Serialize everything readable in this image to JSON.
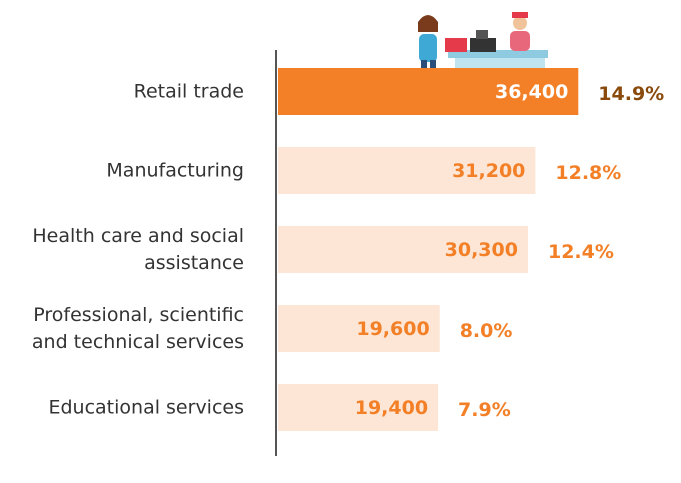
{
  "chart_data": {
    "type": "bar",
    "orientation": "horizontal",
    "categories": [
      "Retail trade",
      "Manufacturing",
      "Health care and social\nassistance",
      "Professional, scientific\nand technical services",
      "Educational services"
    ],
    "values": [
      36400,
      31200,
      30300,
      19600,
      19400
    ],
    "value_labels": [
      "36,400",
      "31,200",
      "30,300",
      "19,600",
      "19,400"
    ],
    "colors": [
      "#f37f26",
      "#fde6d5",
      "#fde6d5",
      "#fde6d5",
      "#fde6d5"
    ],
    "value_label_colors": [
      "#ffffff",
      "#f37f26",
      "#f37f26",
      "#f37f26",
      "#f37f26"
    ],
    "shares": {
      "values": [
        14.9,
        12.8,
        12.4,
        8.0,
        7.9
      ],
      "value_labels": [
        "14.9%",
        "12.8%",
        "12.4%",
        "8.0%",
        "7.9%"
      ],
      "colors": [
        "#8a4a0c",
        "#f37f26",
        "#f37f26",
        "#f37f26",
        "#f37f26"
      ]
    },
    "xlim": [
      0,
      40000
    ]
  }
}
